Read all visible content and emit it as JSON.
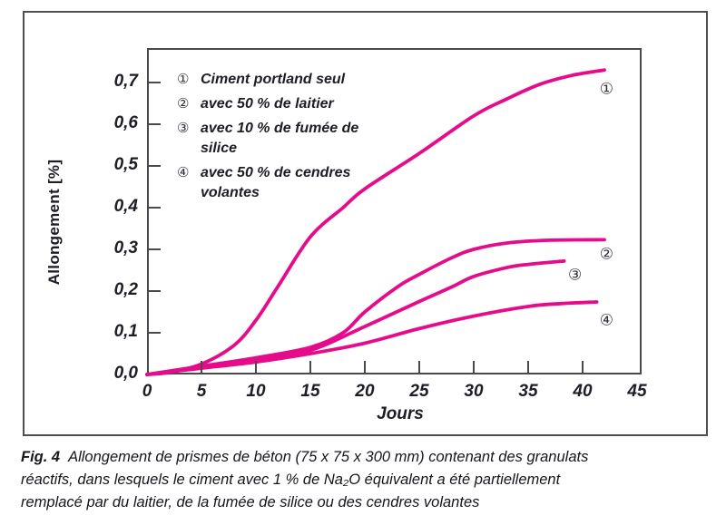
{
  "caption": {
    "fig_label": "Fig. 4",
    "text": "Allongement de prismes de béton (75 x 75 x 300 mm) contenant des granulats\nréactifs, dans lesquels le ciment avec 1 % de Na₂O équivalent a été partiellement\nremplacé par du laitier, de la fumée de silice ou des cendres volantes"
  },
  "chart_data": {
    "type": "line",
    "title": "",
    "grid": false,
    "colors": {
      "line": "#e60b8a",
      "axis": "#4a4a4a",
      "text": "#1d1d26"
    },
    "x_axis": {
      "label": "Jours",
      "lim": [
        0,
        45
      ],
      "ticks": [
        {
          "v": 0,
          "label": "0"
        },
        {
          "v": 5,
          "label": "5"
        },
        {
          "v": 10,
          "label": "10"
        },
        {
          "v": 15,
          "label": "15"
        },
        {
          "v": 20,
          "label": "20"
        },
        {
          "v": 25,
          "label": "25"
        },
        {
          "v": 30,
          "label": "30"
        },
        {
          "v": 35,
          "label": "35"
        },
        {
          "v": 40,
          "label": "40"
        },
        {
          "v": 45,
          "label": "45"
        }
      ]
    },
    "y_axis": {
      "label": "Allongement [%]",
      "lim": [
        0,
        0.78
      ],
      "ticks": [
        {
          "v": 0.0,
          "label": "0,0"
        },
        {
          "v": 0.1,
          "label": "0,1"
        },
        {
          "v": 0.2,
          "label": "0,2"
        },
        {
          "v": 0.3,
          "label": "0,3"
        },
        {
          "v": 0.4,
          "label": "0,4"
        },
        {
          "v": 0.5,
          "label": "0,5"
        },
        {
          "v": 0.6,
          "label": "0,6"
        },
        {
          "v": 0.7,
          "label": "0,7"
        }
      ]
    },
    "legend": {
      "position": "top-left",
      "entries": [
        {
          "marker": "①",
          "label": "Ciment portland seul"
        },
        {
          "marker": "②",
          "label": "avec 50 % de laitier"
        },
        {
          "marker": "③",
          "label": "avec 10 % de fumée de silice"
        },
        {
          "marker": "④",
          "label": "avec 50 % de cendres\nvolantes"
        }
      ]
    },
    "series": [
      {
        "marker": "①",
        "name": "Ciment portland seul",
        "points": [
          [
            0,
            0
          ],
          [
            2,
            0.005
          ],
          [
            5,
            0.025
          ],
          [
            8,
            0.07
          ],
          [
            10,
            0.13
          ],
          [
            12,
            0.21
          ],
          [
            15,
            0.33
          ],
          [
            18,
            0.4
          ],
          [
            20,
            0.445
          ],
          [
            25,
            0.53
          ],
          [
            30,
            0.62
          ],
          [
            33,
            0.66
          ],
          [
            36,
            0.695
          ],
          [
            39,
            0.717
          ],
          [
            42,
            0.73
          ]
        ],
        "annotation": {
          "day": 42.2,
          "pct": 0.685
        }
      },
      {
        "marker": "②",
        "name": "avec 50 % de laitier",
        "points": [
          [
            0,
            0
          ],
          [
            5,
            0.02
          ],
          [
            10,
            0.04
          ],
          [
            15,
            0.065
          ],
          [
            18,
            0.1
          ],
          [
            20,
            0.15
          ],
          [
            23,
            0.21
          ],
          [
            25,
            0.24
          ],
          [
            28,
            0.28
          ],
          [
            30,
            0.3
          ],
          [
            33,
            0.315
          ],
          [
            37,
            0.322
          ],
          [
            42,
            0.323
          ]
        ],
        "annotation": {
          "day": 42.2,
          "pct": 0.289
        }
      },
      {
        "marker": "③",
        "name": "avec 10 % de fumée de silice",
        "points": [
          [
            0,
            0
          ],
          [
            5,
            0.018
          ],
          [
            10,
            0.035
          ],
          [
            15,
            0.058
          ],
          [
            20,
            0.115
          ],
          [
            25,
            0.175
          ],
          [
            28,
            0.21
          ],
          [
            30,
            0.235
          ],
          [
            33,
            0.256
          ],
          [
            35,
            0.264
          ],
          [
            38.3,
            0.272
          ]
        ],
        "annotation": {
          "day": 39.3,
          "pct": 0.239
        }
      },
      {
        "marker": "④",
        "name": "avec 50 % de cendres volantes",
        "points": [
          [
            0,
            0
          ],
          [
            5,
            0.015
          ],
          [
            10,
            0.03
          ],
          [
            15,
            0.05
          ],
          [
            20,
            0.075
          ],
          [
            25,
            0.11
          ],
          [
            30,
            0.14
          ],
          [
            35,
            0.163
          ],
          [
            38,
            0.17
          ],
          [
            41.3,
            0.174
          ]
        ],
        "annotation": {
          "day": 42.2,
          "pct": 0.13
        }
      }
    ]
  }
}
